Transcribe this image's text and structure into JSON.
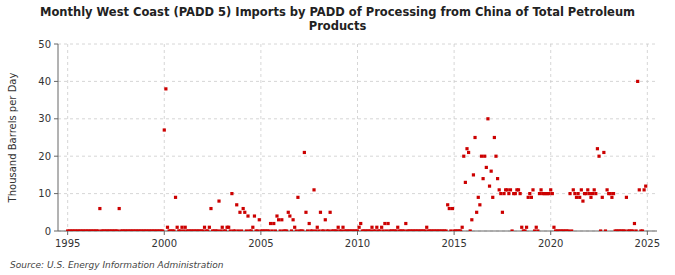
{
  "chart_data": {
    "type": "scatter",
    "title": "Monthly West Coast (PADD 5) Imports by PADD of Processing from China of Total Petroleum\nProducts",
    "ylabel": "Thousand Barrels per Day",
    "source": "Source: U.S. Energy Information Administration",
    "color": "#CC0000",
    "marker": "square",
    "grid": true,
    "xlim": [
      1994.5,
      2025.5
    ],
    "ylim": [
      0,
      50
    ],
    "xticks": [
      1995,
      2000,
      2005,
      2010,
      2015,
      2020,
      2025
    ],
    "yticks": [
      0,
      10,
      20,
      30,
      40,
      50
    ],
    "x": [
      1995.0,
      1995.083,
      1995.167,
      1995.25,
      1995.333,
      1995.417,
      1995.5,
      1995.583,
      1995.667,
      1995.75,
      1995.833,
      1995.917,
      1996.0,
      1996.083,
      1996.167,
      1996.25,
      1996.333,
      1996.417,
      1996.5,
      1996.583,
      1996.667,
      1996.75,
      1996.833,
      1996.917,
      1997.0,
      1997.083,
      1997.167,
      1997.25,
      1997.333,
      1997.417,
      1997.5,
      1997.583,
      1997.667,
      1997.75,
      1997.833,
      1997.917,
      1998.0,
      1998.083,
      1998.167,
      1998.25,
      1998.333,
      1998.417,
      1998.5,
      1998.583,
      1998.667,
      1998.75,
      1998.833,
      1998.917,
      1999.0,
      1999.083,
      1999.167,
      1999.25,
      1999.333,
      1999.417,
      1999.5,
      1999.583,
      1999.667,
      1999.75,
      1999.833,
      1999.917,
      2000.0,
      2000.083,
      2000.167,
      2000.25,
      2000.333,
      2000.417,
      2000.5,
      2000.583,
      2000.667,
      2000.75,
      2000.833,
      2000.917,
      2001.0,
      2001.083,
      2001.167,
      2001.25,
      2001.333,
      2001.417,
      2001.5,
      2001.583,
      2001.667,
      2001.75,
      2001.833,
      2001.917,
      2002.0,
      2002.083,
      2002.167,
      2002.25,
      2002.333,
      2002.417,
      2002.5,
      2002.583,
      2002.667,
      2002.75,
      2002.833,
      2002.917,
      2003.0,
      2003.083,
      2003.167,
      2003.25,
      2003.333,
      2003.417,
      2003.5,
      2003.583,
      2003.667,
      2003.75,
      2003.833,
      2003.917,
      2004.0,
      2004.083,
      2004.167,
      2004.25,
      2004.333,
      2004.417,
      2004.5,
      2004.583,
      2004.667,
      2004.75,
      2004.833,
      2004.917,
      2005.0,
      2005.083,
      2005.167,
      2005.25,
      2005.333,
      2005.417,
      2005.5,
      2005.583,
      2005.667,
      2005.75,
      2005.833,
      2005.917,
      2006.0,
      2006.083,
      2006.167,
      2006.25,
      2006.333,
      2006.417,
      2006.5,
      2006.583,
      2006.667,
      2006.75,
      2006.833,
      2006.917,
      2007.0,
      2007.083,
      2007.167,
      2007.25,
      2007.333,
      2007.417,
      2007.5,
      2007.583,
      2007.667,
      2007.75,
      2007.833,
      2007.917,
      2008.0,
      2008.083,
      2008.167,
      2008.25,
      2008.333,
      2008.417,
      2008.5,
      2008.583,
      2008.667,
      2008.75,
      2008.833,
      2008.917,
      2009.0,
      2009.083,
      2009.167,
      2009.25,
      2009.333,
      2009.417,
      2009.5,
      2009.583,
      2009.667,
      2009.75,
      2009.833,
      2009.917,
      2010.0,
      2010.083,
      2010.167,
      2010.25,
      2010.333,
      2010.417,
      2010.5,
      2010.583,
      2010.667,
      2010.75,
      2010.833,
      2010.917,
      2011.0,
      2011.083,
      2011.167,
      2011.25,
      2011.333,
      2011.417,
      2011.5,
      2011.583,
      2011.667,
      2011.75,
      2011.833,
      2011.917,
      2012.0,
      2012.083,
      2012.167,
      2012.25,
      2012.333,
      2012.417,
      2012.5,
      2012.583,
      2012.667,
      2012.75,
      2012.833,
      2012.917,
      2013.0,
      2013.083,
      2013.167,
      2013.25,
      2013.333,
      2013.417,
      2013.5,
      2013.583,
      2013.667,
      2013.75,
      2013.833,
      2013.917,
      2014.0,
      2014.083,
      2014.167,
      2014.25,
      2014.333,
      2014.417,
      2014.5,
      2014.583,
      2014.667,
      2014.75,
      2014.833,
      2014.917,
      2015.0,
      2015.083,
      2015.167,
      2015.25,
      2015.333,
      2015.417,
      2015.5,
      2015.583,
      2015.667,
      2015.75,
      2015.833,
      2015.917,
      2016.0,
      2016.083,
      2016.167,
      2016.25,
      2016.333,
      2016.417,
      2016.5,
      2016.583,
      2016.667,
      2016.75,
      2016.833,
      2016.917,
      2017.0,
      2017.083,
      2017.167,
      2017.25,
      2017.333,
      2017.417,
      2017.5,
      2017.583,
      2017.667,
      2017.75,
      2017.833,
      2017.917,
      2018.0,
      2018.083,
      2018.167,
      2018.25,
      2018.333,
      2018.417,
      2018.5,
      2018.583,
      2018.667,
      2018.75,
      2018.833,
      2018.917,
      2019.0,
      2019.083,
      2019.167,
      2019.25,
      2019.333,
      2019.417,
      2019.5,
      2019.583,
      2019.667,
      2019.75,
      2019.833,
      2019.917,
      2020.0,
      2020.083,
      2020.167,
      2020.25,
      2020.333,
      2020.417,
      2020.5,
      2020.583,
      2020.667,
      2020.75,
      2020.833,
      2020.917,
      2021.0,
      2021.083,
      2021.167,
      2021.25,
      2021.333,
      2021.417,
      2021.5,
      2021.583,
      2021.667,
      2021.75,
      2021.833,
      2021.917,
      2022.0,
      2022.083,
      2022.167,
      2022.25,
      2022.333,
      2022.417,
      2022.5,
      2022.583,
      2022.667,
      2022.75,
      2022.833,
      2022.917,
      2023.0,
      2023.083,
      2023.167,
      2023.25,
      2023.333,
      2023.417,
      2023.5,
      2023.583,
      2023.667,
      2023.75,
      2023.833,
      2023.917,
      2024.0,
      2024.083,
      2024.167,
      2024.25,
      2024.333,
      2024.417,
      2024.5,
      2024.583,
      2024.667,
      2024.75,
      2024.833,
      2024.917
    ],
    "values": [
      0,
      0,
      0,
      0,
      0,
      0,
      0,
      0,
      0,
      0,
      0,
      0,
      0,
      0,
      0,
      0,
      0,
      0,
      0,
      0,
      6,
      0,
      0,
      0,
      0,
      0,
      0,
      0,
      0,
      0,
      0,
      0,
      6,
      0,
      0,
      0,
      0,
      0,
      0,
      0,
      0,
      0,
      0,
      0,
      0,
      0,
      0,
      0,
      0,
      0,
      0,
      0,
      0,
      0,
      0,
      0,
      0,
      0,
      0,
      0,
      27,
      38,
      1,
      0,
      0,
      0,
      0,
      9,
      1,
      0,
      0,
      1,
      0,
      1,
      0,
      0,
      0,
      0,
      0,
      0,
      0,
      0,
      0,
      0,
      0,
      1,
      0,
      0,
      1,
      6,
      0,
      0,
      0,
      0,
      8,
      0,
      1,
      0,
      0,
      1,
      1,
      0,
      10,
      0,
      0,
      7,
      0,
      5,
      0,
      6,
      5,
      0,
      4,
      0,
      0,
      1,
      4,
      0,
      0,
      3,
      0,
      0,
      0,
      0,
      0,
      0,
      2,
      0,
      2,
      0,
      4,
      3,
      0,
      3,
      0,
      0,
      0,
      5,
      4,
      0,
      3,
      1,
      0,
      9,
      0,
      0,
      0,
      21,
      5,
      0,
      2,
      0,
      0,
      11,
      0,
      1,
      0,
      5,
      0,
      0,
      3,
      0,
      0,
      5,
      0,
      0,
      0,
      0,
      1,
      0,
      0,
      1,
      0,
      0,
      0,
      0,
      0,
      0,
      0,
      0,
      0,
      1,
      2,
      0,
      0,
      0,
      0,
      0,
      0,
      1,
      0,
      0,
      1,
      0,
      0,
      1,
      0,
      2,
      0,
      2,
      0,
      0,
      0,
      0,
      0,
      1,
      0,
      0,
      0,
      0,
      2,
      0,
      0,
      0,
      0,
      0,
      0,
      0,
      0,
      0,
      0,
      0,
      0,
      1,
      0,
      0,
      0,
      0,
      0,
      0,
      0,
      0,
      0,
      0,
      0,
      0,
      7,
      6,
      0,
      6,
      0,
      0,
      0,
      0,
      0,
      1,
      20,
      13,
      22,
      21,
      0,
      3,
      15,
      25,
      5,
      9,
      7,
      20,
      14,
      20,
      17,
      30,
      12,
      16,
      9,
      25,
      20,
      14,
      11,
      10,
      5,
      10,
      11,
      11,
      10,
      11,
      0,
      10,
      10,
      11,
      11,
      10,
      1,
      0,
      0,
      1,
      9,
      10,
      9,
      11,
      0,
      1,
      0,
      10,
      11,
      10,
      10,
      10,
      10,
      10,
      11,
      10,
      1,
      0,
      0,
      0,
      0,
      0,
      0,
      0,
      0,
      0,
      10,
      0,
      11,
      10,
      9,
      10,
      9,
      11,
      8,
      10,
      10,
      11,
      10,
      9,
      10,
      11,
      10,
      22,
      20,
      0,
      9,
      21,
      0,
      11,
      10,
      10,
      9,
      10,
      0,
      0,
      0,
      0,
      0,
      0,
      0,
      9,
      0,
      0,
      0,
      0,
      2,
      0,
      40,
      11,
      0,
      0,
      11,
      12
    ]
  }
}
